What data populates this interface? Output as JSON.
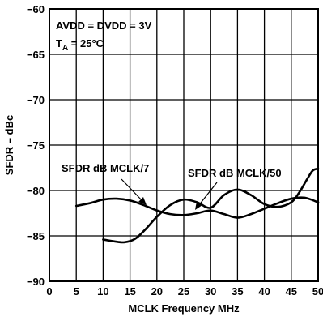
{
  "chart_data": {
    "type": "line",
    "xlabel": "MCLK Frequency MHz",
    "ylabel": "SFDR – dBc",
    "xlim": [
      0,
      50
    ],
    "ylim": [
      -90,
      -60
    ],
    "x_ticks": [
      "0",
      "5",
      "10",
      "15",
      "20",
      "25",
      "30",
      "35",
      "40",
      "45",
      "50"
    ],
    "y_ticks": [
      "-60",
      "-65",
      "-70",
      "-75",
      "-80",
      "-85",
      "-90"
    ],
    "grid": true,
    "conditions": [
      "AVDD = DVDD = 3V",
      "T",
      "A",
      " = 25°C"
    ],
    "series": [
      {
        "name": "SFDR dB MCLK/7",
        "x": [
          5,
          7.5,
          10,
          12.5,
          15,
          17.5,
          20,
          22.5,
          25,
          27.5,
          30,
          32.5,
          35,
          37.5,
          40,
          42.5,
          45,
          47.5,
          50
        ],
        "y": [
          -81.7,
          -81.4,
          -81.0,
          -80.9,
          -81.1,
          -81.6,
          -82.2,
          -82.6,
          -82.7,
          -82.5,
          -82.2,
          -82.6,
          -83.0,
          -82.6,
          -82.0,
          -81.4,
          -80.9,
          -80.8,
          -81.3
        ]
      },
      {
        "name": "SFDR dB MCLK/50",
        "x": [
          10,
          12,
          14,
          16,
          18,
          20,
          22.5,
          25,
          27.5,
          30,
          32.5,
          35,
          37.5,
          40,
          42.5,
          45,
          46.5,
          48,
          49,
          50
        ],
        "y": [
          -85.4,
          -85.6,
          -85.7,
          -85.3,
          -84.2,
          -82.9,
          -81.6,
          -81.0,
          -81.3,
          -81.9,
          -80.5,
          -79.9,
          -80.5,
          -81.5,
          -81.8,
          -81.3,
          -80.2,
          -78.7,
          -77.8,
          -77.6
        ]
      }
    ]
  }
}
